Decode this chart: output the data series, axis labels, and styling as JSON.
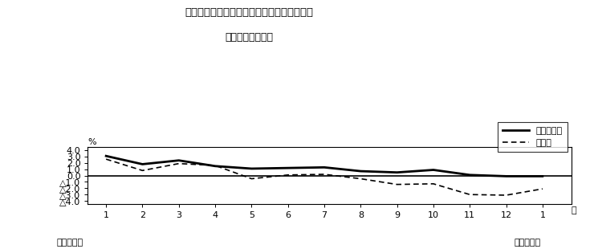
{
  "title_line1": "第３図　常用雇用指数　対前年同月比の推移",
  "title_line2": "（規模５人以上）",
  "x_values": [
    1,
    2,
    3,
    4,
    5,
    6,
    7,
    8,
    9,
    10,
    11,
    12,
    13
  ],
  "x_tick_labels": [
    "1",
    "2",
    "3",
    "4",
    "5",
    "6",
    "7",
    "8",
    "9",
    "10",
    "11",
    "12",
    "1"
  ],
  "solid_values": [
    3.1,
    1.8,
    2.4,
    1.5,
    1.1,
    1.2,
    1.3,
    0.7,
    0.5,
    0.9,
    0.1,
    -0.1,
    -0.1
  ],
  "dashed_values": [
    2.6,
    0.8,
    1.9,
    1.6,
    -0.5,
    0.1,
    0.2,
    -0.5,
    -1.4,
    -1.3,
    -3.0,
    -3.1,
    -2.1
  ],
  "legend_solid": "調査産業計",
  "legend_dashed": "製造業",
  "ylabel_text": "%",
  "ytick_values": [
    4.0,
    3.0,
    2.0,
    1.0,
    0.0,
    -1.0,
    -2.0,
    -3.0,
    -4.0
  ],
  "ytick_labels": [
    "4.0",
    "3.0",
    "2.0",
    "1.0",
    "0.0",
    "△1.0",
    "△2.0",
    "△3.0",
    "△4.0"
  ],
  "ylim": [
    -4.5,
    4.5
  ],
  "xlim": [
    0.5,
    13.8
  ],
  "footer_left": "平成２３年",
  "footer_right": "平成２４年",
  "line_color": "#000000",
  "background_color": "#ffffff"
}
